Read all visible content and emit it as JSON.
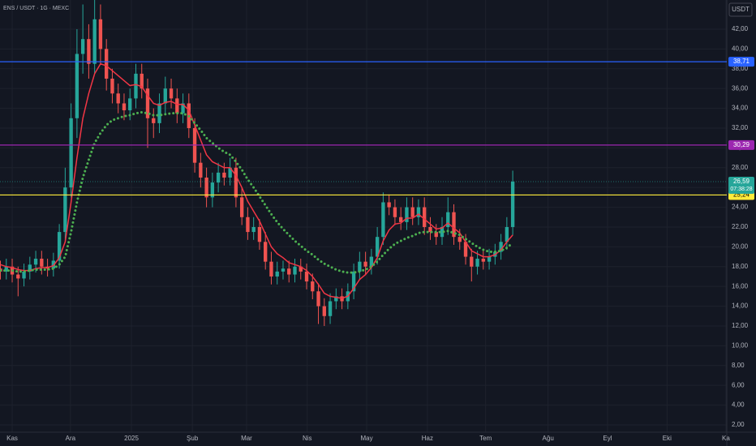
{
  "header": {
    "symbol": "ENS / USDT · 1G · MEXC",
    "currency": "USDT"
  },
  "chart_data": {
    "type": "candlestick",
    "open": [
      17.8,
      17.5,
      18.0,
      17.2,
      16.8,
      17.5,
      18.2,
      18.8,
      18.0,
      17.8,
      18.6,
      21.5,
      26.0,
      33.0,
      39.5,
      41.0,
      38.5,
      43.0,
      40.0,
      37.0,
      35.5,
      34.5,
      33.8,
      35.0,
      37.5,
      36.0,
      33.0,
      32.5,
      34.5,
      36.0,
      35.0,
      33.5,
      34.5,
      32.0,
      28.5,
      27.0,
      25.0,
      26.5,
      27.5,
      27.0,
      28.0,
      25.0,
      23.0,
      21.5,
      22.0,
      20.5,
      18.5,
      17.0,
      17.5,
      17.8,
      17.2,
      18.0,
      17.5,
      16.5,
      15.5,
      14.0,
      13.0,
      14.5,
      15.0,
      14.5,
      15.5,
      17.5,
      18.5,
      18.0,
      19.0,
      21.0,
      24.5,
      24.0,
      23.0,
      22.5,
      24.0,
      23.0,
      24.0,
      22.0,
      21.5,
      21.0,
      22.0,
      23.5,
      21.0,
      20.5,
      19.0,
      18.0,
      18.8,
      18.5,
      19.0,
      19.5,
      20.5,
      22.0
    ],
    "high": [
      18.6,
      18.8,
      18.8,
      18.0,
      18.3,
      19.0,
      19.6,
      19.6,
      18.8,
      19.4,
      22.3,
      28.0,
      34.5,
      42.0,
      44.5,
      42.5,
      46.0,
      44.5,
      41.0,
      38.0,
      36.5,
      35.5,
      36.0,
      38.5,
      38.5,
      37.0,
      34.0,
      35.5,
      37.2,
      37.0,
      36.0,
      35.5,
      35.5,
      33.0,
      29.5,
      28.0,
      27.5,
      28.5,
      28.5,
      29.0,
      29.0,
      26.0,
      24.0,
      23.0,
      22.8,
      21.5,
      19.5,
      18.5,
      18.6,
      18.6,
      18.8,
      18.8,
      18.3,
      17.3,
      16.3,
      14.8,
      15.3,
      15.8,
      15.8,
      16.3,
      18.3,
      19.5,
      19.5,
      19.8,
      22.0,
      25.5,
      25.3,
      24.8,
      24.0,
      25.0,
      25.0,
      24.8,
      25.0,
      23.0,
      22.3,
      23.0,
      25.0,
      24.3,
      21.8,
      21.3,
      19.8,
      19.6,
      19.6,
      19.8,
      20.3,
      21.3,
      23.0,
      27.7
    ],
    "low": [
      16.7,
      16.7,
      16.4,
      15.0,
      16.0,
      16.7,
      17.4,
      17.2,
      17.0,
      17.0,
      17.8,
      20.5,
      25.0,
      31.0,
      37.5,
      37.0,
      37.5,
      38.5,
      35.8,
      34.5,
      33.5,
      32.8,
      32.8,
      34.0,
      35.0,
      30.0,
      31.0,
      31.5,
      33.5,
      34.0,
      32.5,
      32.5,
      31.0,
      27.5,
      26.0,
      24.0,
      24.0,
      25.5,
      26.2,
      26.2,
      24.0,
      22.2,
      20.7,
      20.7,
      19.7,
      17.7,
      16.2,
      16.2,
      16.7,
      16.4,
      16.4,
      16.7,
      15.7,
      14.7,
      12.2,
      12.0,
      12.2,
      13.7,
      13.7,
      13.7,
      14.7,
      16.7,
      17.2,
      17.2,
      18.2,
      20.2,
      23.2,
      22.2,
      21.7,
      21.7,
      22.2,
      22.2,
      21.2,
      20.7,
      20.2,
      20.2,
      21.2,
      20.2,
      19.7,
      18.2,
      16.5,
      17.2,
      17.7,
      17.7,
      18.2,
      18.7,
      19.7,
      21.2
    ],
    "close": [
      17.5,
      18.0,
      17.2,
      16.8,
      17.5,
      18.2,
      18.8,
      18.0,
      17.8,
      18.6,
      21.5,
      26.0,
      33.0,
      39.5,
      41.0,
      38.5,
      43.0,
      40.0,
      37.0,
      35.5,
      34.5,
      33.8,
      35.0,
      37.5,
      36.0,
      33.0,
      32.5,
      34.5,
      36.0,
      35.0,
      33.5,
      34.5,
      32.0,
      28.5,
      27.0,
      25.0,
      26.5,
      27.5,
      27.0,
      28.0,
      25.0,
      23.0,
      21.5,
      22.0,
      20.5,
      18.5,
      17.0,
      17.5,
      17.8,
      17.2,
      18.0,
      17.5,
      16.5,
      15.5,
      14.0,
      13.0,
      14.5,
      15.0,
      14.5,
      15.5,
      17.5,
      18.5,
      18.0,
      19.0,
      21.0,
      24.5,
      24.0,
      23.0,
      22.5,
      24.0,
      23.0,
      24.0,
      22.0,
      21.5,
      21.0,
      22.0,
      23.5,
      21.0,
      20.5,
      19.0,
      18.0,
      18.8,
      18.5,
      19.0,
      19.5,
      20.5,
      22.0,
      26.59
    ],
    "up_color": "#26a69a",
    "down_color": "#ef5350",
    "series": [
      {
        "color": "#f23645",
        "style": "line",
        "values": [
          18.2,
          18.0,
          17.9,
          17.7,
          17.6,
          17.6,
          17.8,
          17.9,
          17.9,
          18.1,
          18.9,
          20.5,
          24.5,
          29,
          33,
          35.5,
          37.5,
          38.5,
          38.3,
          37.8,
          37.3,
          36.8,
          36.3,
          36.4,
          36.2,
          35.3,
          34.5,
          34.3,
          34.6,
          34.7,
          34.4,
          34.4,
          33.8,
          32.3,
          30.8,
          29.3,
          28.6,
          28.3,
          28.0,
          28.0,
          27.2,
          26.0,
          24.6,
          23.6,
          22.6,
          21.3,
          20.0,
          19.3,
          18.9,
          18.4,
          18.2,
          18.0,
          17.6,
          17.0,
          16.2,
          15.3,
          15.0,
          14.9,
          14.8,
          15.0,
          15.8,
          16.7,
          17.2,
          17.9,
          18.9,
          20.6,
          21.7,
          22.3,
          22.4,
          22.9,
          22.9,
          23.3,
          22.8,
          22.3,
          21.8,
          21.9,
          22.4,
          21.9,
          21.4,
          20.5,
          19.6,
          19.3,
          19.0,
          19.0,
          19.2,
          19.7,
          20.5,
          21.2
        ]
      },
      {
        "color": "#4caf50",
        "style": "dots",
        "values": [
          17.6,
          17.6,
          17.6,
          17.5,
          17.5,
          17.6,
          17.7,
          17.7,
          17.7,
          17.8,
          18.2,
          19.0,
          21.5,
          24.5,
          27.0,
          28.8,
          30.5,
          31.5,
          32.3,
          32.8,
          33.0,
          33.2,
          33.3,
          33.5,
          33.6,
          33.5,
          33.3,
          33.3,
          33.4,
          33.5,
          33.5,
          33.5,
          33.2,
          32.5,
          31.8,
          31.0,
          30.5,
          30.0,
          29.6,
          29.3,
          28.6,
          27.8,
          26.8,
          26.0,
          25.1,
          24.2,
          23.3,
          22.5,
          21.8,
          21.2,
          20.6,
          20.1,
          19.6,
          19.2,
          18.7,
          18.3,
          18.0,
          17.7,
          17.5,
          17.4,
          17.4,
          17.5,
          17.7,
          18.0,
          18.5,
          19.2,
          19.8,
          20.3,
          20.6,
          20.9,
          21.1,
          21.4,
          21.5,
          21.5,
          21.5,
          21.5,
          21.6,
          21.4,
          21.2,
          20.8,
          20.4,
          20.0,
          19.7,
          19.5,
          19.5,
          19.6,
          19.9,
          20.4
        ]
      }
    ],
    "hlines": [
      {
        "value": 38.71,
        "label": "38,71",
        "color": "#2962ff",
        "text_color": "#ffffff"
      },
      {
        "value": 30.29,
        "label": "30,29",
        "color": "#9c27b0",
        "text_color": "#ffffff"
      },
      {
        "value": 25.24,
        "label": "25,24",
        "color": "#ffeb3b",
        "text_color": "#000000"
      }
    ],
    "last": {
      "value": 26.59,
      "label": "26,59",
      "countdown": "07:38:28",
      "color": "#26a69a"
    },
    "ylim": [
      1.26,
      44.95
    ],
    "xlim": [
      -0.07,
      123.35
    ],
    "yticks": [
      {
        "value": 2,
        "label": "2,00"
      },
      {
        "value": 4,
        "label": "4,00"
      },
      {
        "value": 6,
        "label": "6,00"
      },
      {
        "value": 8,
        "label": "8,00"
      },
      {
        "value": 10,
        "label": "10,00"
      },
      {
        "value": 12,
        "label": "12,00"
      },
      {
        "value": 14,
        "label": "14,00"
      },
      {
        "value": 16,
        "label": "16,00"
      },
      {
        "value": 18,
        "label": "18,00"
      },
      {
        "value": 20,
        "label": "20,00"
      },
      {
        "value": 22,
        "label": "22,00"
      },
      {
        "value": 24,
        "label": "24,00"
      },
      {
        "value": 26,
        "label": "26,00"
      },
      {
        "value": 28,
        "label": "28,00"
      },
      {
        "value": 30,
        "label": "30,00"
      },
      {
        "value": 32,
        "label": "32,00"
      },
      {
        "value": 34,
        "label": "34,00"
      },
      {
        "value": 36,
        "label": "36,00"
      },
      {
        "value": 38,
        "label": "38,00"
      },
      {
        "value": 40,
        "label": "40,00"
      },
      {
        "value": 42,
        "label": "42,00"
      }
    ],
    "xticks": [
      {
        "value": 2,
        "label": "Kas"
      },
      {
        "value": 11.9,
        "label": "Ara"
      },
      {
        "value": 22.25,
        "label": "2025"
      },
      {
        "value": 32.6,
        "label": "Şub"
      },
      {
        "value": 41.8,
        "label": "Mar"
      },
      {
        "value": 52.1,
        "label": "Nis"
      },
      {
        "value": 62.2,
        "label": "May"
      },
      {
        "value": 72.5,
        "label": "Haz"
      },
      {
        "value": 82.4,
        "label": "Tem"
      },
      {
        "value": 93.0,
        "label": "Ağu"
      },
      {
        "value": 103.1,
        "label": "Eyl"
      },
      {
        "value": 113.2,
        "label": "Eki"
      },
      {
        "value": 123.2,
        "label": "Ka"
      }
    ],
    "grid": true
  }
}
